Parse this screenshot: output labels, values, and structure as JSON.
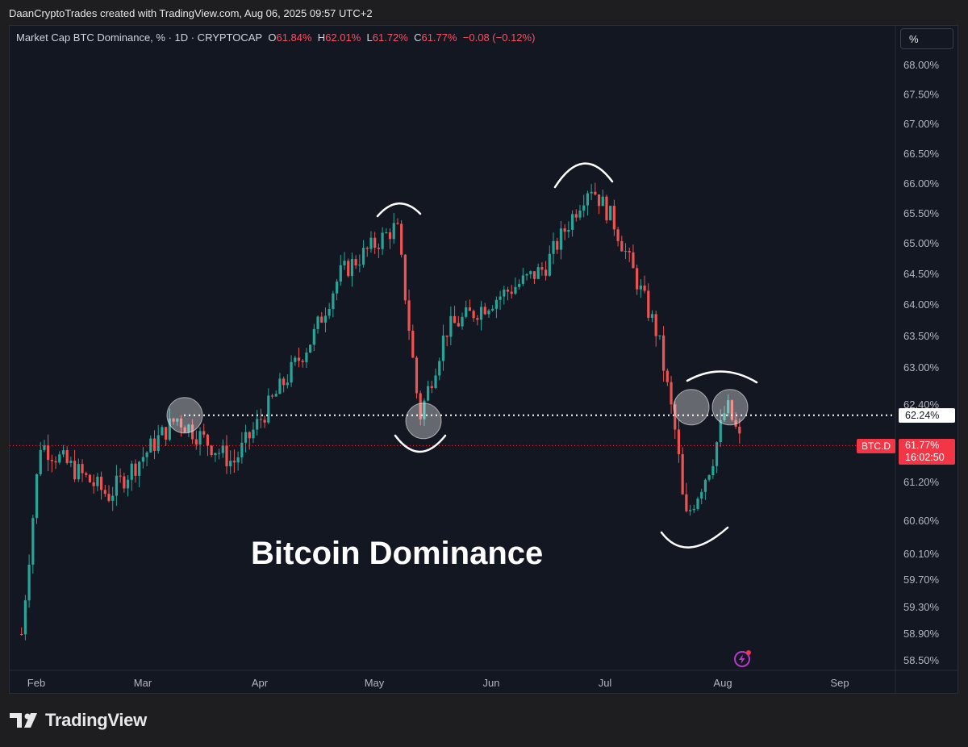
{
  "header": {
    "attribution": "DaanCryptoTrades created with TradingView.com, Aug 06, 2025 09:57 UTC+2"
  },
  "legend": {
    "symbol": "Market Cap BTC Dominance, % · 1D · CRYPTOCAP",
    "o_label": "O",
    "o_value": "61.84%",
    "h_label": "H",
    "h_value": "62.01%",
    "l_label": "L",
    "l_value": "61.72%",
    "c_label": "C",
    "c_value": "61.77%",
    "change": "−0.08 (−0.12%)"
  },
  "unit_selector": "%",
  "overlay_title": "Bitcoin Dominance",
  "price_scale": {
    "level_label": "62.24%",
    "symbol_tag": "BTC.D",
    "last_price": "61.77%",
    "countdown": "16:02:50"
  },
  "footer": {
    "brand": "TradingView"
  },
  "colors": {
    "up": "#26a69a",
    "down": "#ef5350",
    "background": "#131722",
    "level_line": "#ffffff",
    "last_price": "#f23645",
    "grid_text": "#b2b5be"
  },
  "chart_data": {
    "type": "candlestick",
    "title": "Bitcoin Dominance",
    "y_unit": "%",
    "y_ticks": [
      "68.00%",
      "67.50%",
      "67.00%",
      "66.50%",
      "66.00%",
      "65.50%",
      "65.00%",
      "64.50%",
      "64.00%",
      "63.50%",
      "63.00%",
      "62.40%",
      "61.20%",
      "60.60%",
      "60.10%",
      "59.70%",
      "59.30%",
      "58.90%",
      "58.50%"
    ],
    "x_ticks": [
      "Feb",
      "Mar",
      "Apr",
      "May",
      "Jun",
      "Jul",
      "Aug",
      "Sep"
    ],
    "horizontal_level": 62.24,
    "last_price": 61.77,
    "grid": false,
    "annotations": [
      "circle at 62.24 (early Mar)",
      "circle at 62.24 (mid May)",
      "circles at 62.24 (late Jul, early Aug)",
      "arc over 65.4 top (early May)",
      "arc over 66.0 top (late Jun)",
      "arc under 61.8 low (mid May)",
      "arc under 60.5 low (late Jul)",
      "arc over 62.5 (early Aug)"
    ],
    "key_points": [
      {
        "date": "Jan 28",
        "value": 58.9
      },
      {
        "date": "Feb 02",
        "value": 61.8
      },
      {
        "date": "Feb 20",
        "value": 61.0
      },
      {
        "date": "Mar 10",
        "value": 62.2
      },
      {
        "date": "Mar 25",
        "value": 61.5
      },
      {
        "date": "Apr 15",
        "value": 63.5
      },
      {
        "date": "Apr 22",
        "value": 64.5
      },
      {
        "date": "May 07",
        "value": 65.3
      },
      {
        "date": "May 13",
        "value": 62.2
      },
      {
        "date": "May 20",
        "value": 63.6
      },
      {
        "date": "Jun 15",
        "value": 64.6
      },
      {
        "date": "Jun 27",
        "value": 66.0
      },
      {
        "date": "Jul 03",
        "value": 65.4
      },
      {
        "date": "Jul 15",
        "value": 63.5
      },
      {
        "date": "Jul 20",
        "value": 61.8
      },
      {
        "date": "Jul 22",
        "value": 60.6
      },
      {
        "date": "Jul 29",
        "value": 61.5
      },
      {
        "date": "Aug 02",
        "value": 62.4
      },
      {
        "date": "Aug 06",
        "value": 61.77
      }
    ]
  }
}
